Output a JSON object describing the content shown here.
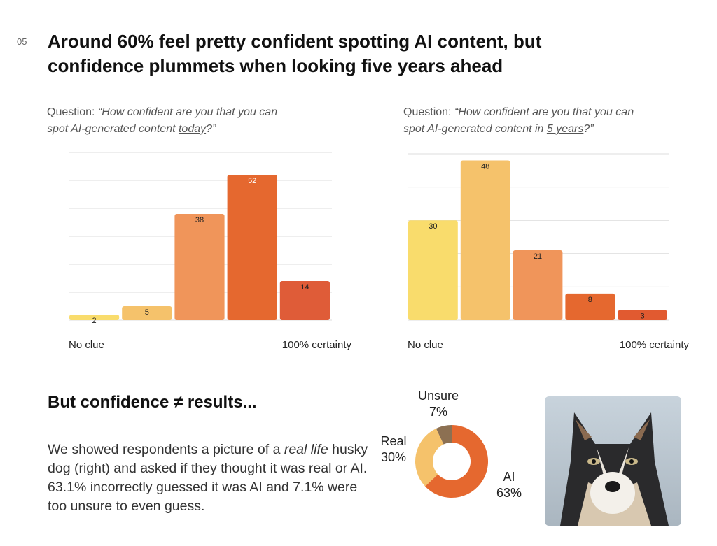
{
  "page_number": "05",
  "title": "Around 60% feel pretty confident spotting AI content, but confidence plummets when looking five years ahead",
  "chart_data": [
    {
      "type": "bar",
      "question": [
        "Question: ",
        "“How confident are you that you can spot AI-generated content ",
        "today",
        "?”"
      ],
      "categories": [
        "No clue",
        null,
        null,
        null,
        "100% certainty"
      ],
      "values": [
        2,
        5,
        38,
        52,
        14
      ],
      "colors": [
        "#f9dc6c",
        "#f5c26b",
        "#f0955a",
        "#e5682f",
        "#df5c38"
      ],
      "ylim": [
        0,
        60
      ],
      "yticks": [
        0,
        10,
        20,
        30,
        40,
        50,
        60
      ],
      "grid": true
    },
    {
      "type": "bar",
      "question": [
        "Question: ",
        "“How confident are you that you can spot AI-generated content in ",
        "5 years",
        "?”"
      ],
      "categories": [
        "No clue",
        null,
        null,
        null,
        "100% certainty"
      ],
      "values": [
        30,
        48,
        21,
        8,
        3
      ],
      "colors": [
        "#f9dc6c",
        "#f5c26b",
        "#f0955a",
        "#e5682f",
        "#e15a30"
      ],
      "ylim": [
        0,
        50
      ],
      "yticks": [
        0,
        10,
        20,
        30,
        40,
        50
      ],
      "grid": true
    },
    {
      "type": "donut",
      "categories": [
        "AI",
        "Real",
        "Unsure"
      ],
      "values": [
        63,
        30,
        7
      ],
      "value_labels": [
        "63%",
        "30%",
        "7%"
      ],
      "colors": [
        "#e5682f",
        "#f5c26b",
        "#8c7052"
      ]
    }
  ],
  "section": {
    "heading": "But confidence ≠ results...",
    "paragraph": [
      "We showed respondents a picture of a ",
      "real life",
      " husky dog (right) and asked if they thought it was real or AI. 63.1% incorrectly guessed it was AI and 7.1% were too unsure to even guess."
    ]
  }
}
